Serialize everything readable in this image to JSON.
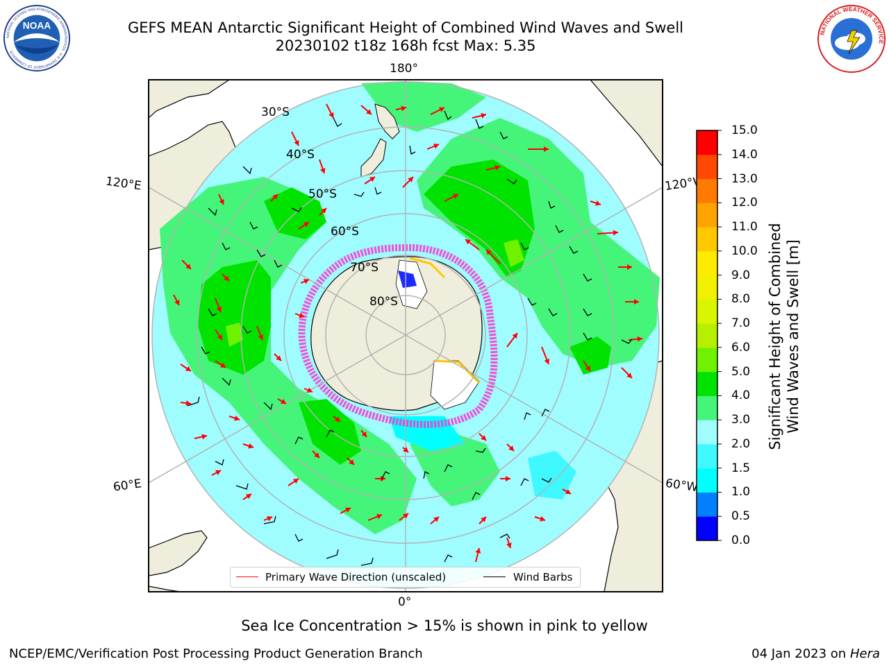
{
  "header": {
    "title_line1": "GEFS MEAN Antarctic Significant Height of Combined Wind Waves and Swell",
    "title_line2": "20230102 t18z 168h fcst   Max: 5.35"
  },
  "logos": {
    "left": {
      "icon": "noaa-logo",
      "text": "NOAA",
      "ring_text": "NATIONAL OCEANIC AND ATMOSPHERIC ADMINISTRATION · U.S. DEPARTMENT OF COMMERCE"
    },
    "right": {
      "icon": "nws-logo",
      "ring_text": "NATIONAL WEATHER SERVICE"
    }
  },
  "map": {
    "projection": "south-polar-stereographic",
    "longitude_labels": {
      "top": "180°",
      "bottom": "0°",
      "left_upper": "120°E",
      "left_lower": "60°E",
      "right_upper": "120°W",
      "right_lower": "60°W"
    },
    "latitude_labels": [
      "30°S",
      "40°S",
      "50°S",
      "60°S",
      "70°S",
      "80°S"
    ],
    "colors": {
      "land": "#efeedc",
      "ocean_low": "#9ffcff",
      "ocean_mid": "#45f57a",
      "ocean_high": "#00e300",
      "grid": "#b3b3b3",
      "wave_arrow": "#ff0000",
      "wind_barb": "#000000"
    }
  },
  "colorbar": {
    "label": "Significant Height of Combined Wind Waves and Swell [m]",
    "ticks": [
      "15.0",
      "14.0",
      "13.0",
      "12.0",
      "11.0",
      "10.0",
      "9.0",
      "8.0",
      "7.0",
      "6.0",
      "5.0",
      "4.0",
      "3.0",
      "2.0",
      "1.5",
      "1.0",
      "0.5",
      "0.0"
    ],
    "colors_bottom_to_top": [
      "#0000ff",
      "#0080ff",
      "#00ffff",
      "#40f8ff",
      "#9ffcff",
      "#45f57a",
      "#00e300",
      "#6ef200",
      "#b6f000",
      "#d9f500",
      "#f0f000",
      "#ffeb00",
      "#ffc800",
      "#ffa300",
      "#ff7a00",
      "#ff4800",
      "#ff0000"
    ]
  },
  "legend": {
    "items": [
      {
        "label": "Primary Wave Direction (unscaled)",
        "color": "#ff0000"
      },
      {
        "label": "Wind Barbs",
        "color": "#000000"
      }
    ]
  },
  "footer": {
    "note": "Sea Ice Concentration > 15% is shown in pink to yellow",
    "credit": "NCEP/EMC/Verification Post Processing Product Generation Branch",
    "date": "04 Jan 2023 on ",
    "machine": "Hera"
  }
}
